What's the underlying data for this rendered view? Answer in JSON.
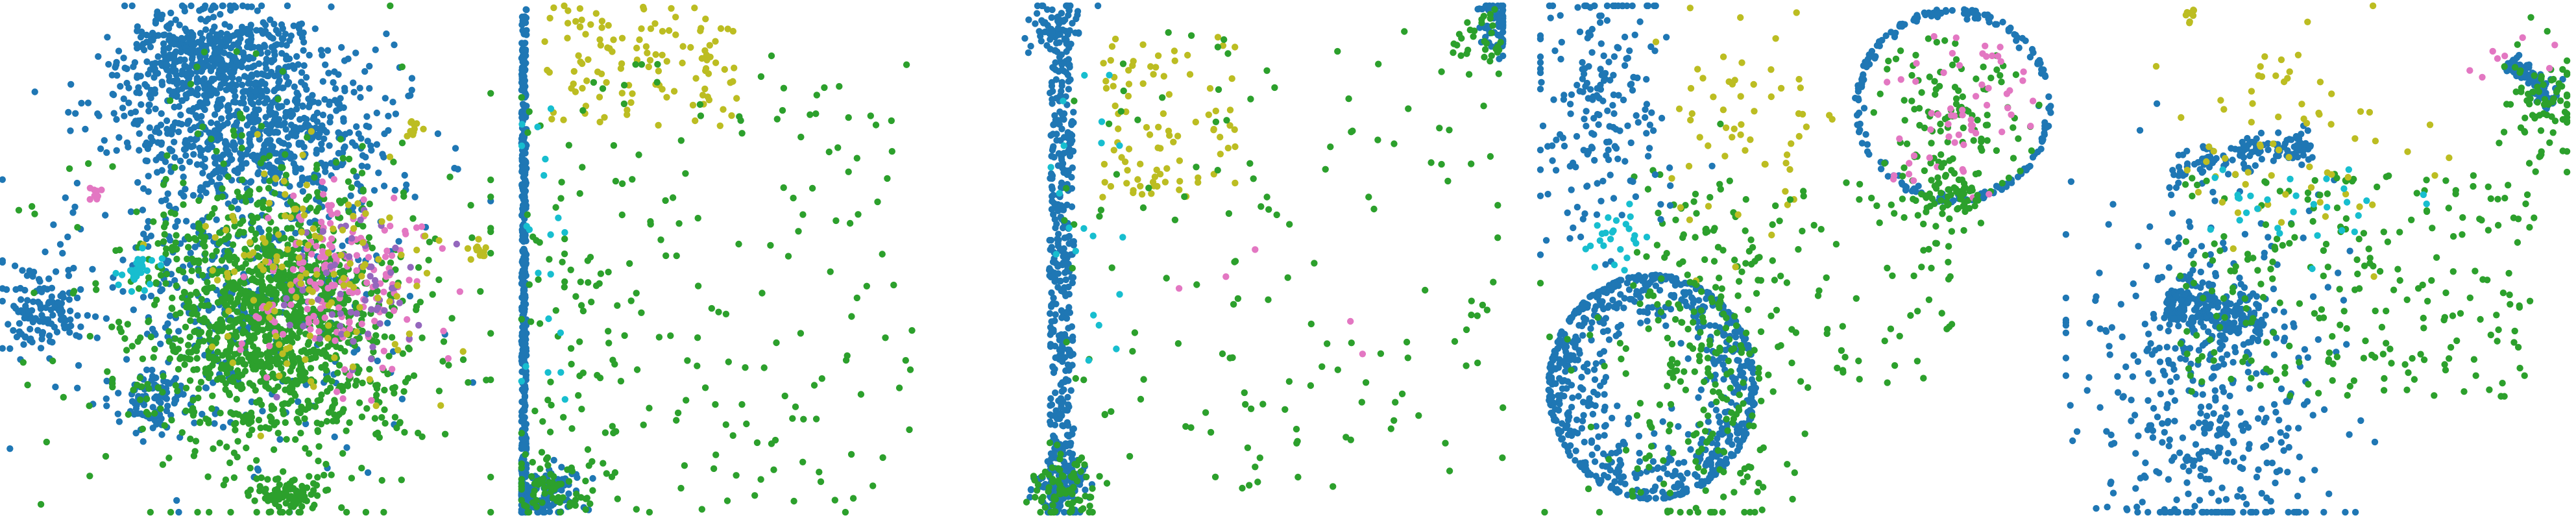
{
  "colors": {
    "blue": "#1f77b4",
    "green": "#2ca02c",
    "olive": "#bcbd22",
    "pink": "#e377c2",
    "purple": "#9467bd",
    "cyan": "#17becf"
  },
  "chart_data": [
    {
      "type": "scatter",
      "panel": 1,
      "axes_visible": false,
      "grid": false,
      "legend": "none",
      "xlim": [
        0,
        1
      ],
      "ylim": [
        0,
        1
      ],
      "clusters": [
        {
          "color": "blue",
          "n": 520,
          "cx": 0.43,
          "cy": 0.1,
          "sx": 0.09,
          "sy": 0.05,
          "shape": "gauss"
        },
        {
          "color": "blue",
          "n": 620,
          "cx": 0.52,
          "cy": 0.26,
          "sx": 0.13,
          "sy": 0.07,
          "shape": "gauss"
        },
        {
          "color": "blue",
          "n": 120,
          "cx": 0.08,
          "cy": 0.61,
          "sx": 0.04,
          "sy": 0.04,
          "shape": "gauss"
        },
        {
          "color": "blue",
          "n": 80,
          "cx": 0.31,
          "cy": 0.78,
          "sx": 0.03,
          "sy": 0.03,
          "shape": "gauss"
        },
        {
          "color": "blue",
          "n": 450,
          "cx": 0.48,
          "cy": 0.55,
          "sx": 0.17,
          "sy": 0.18,
          "shape": "gauss"
        },
        {
          "color": "green",
          "n": 1100,
          "cx": 0.55,
          "cy": 0.62,
          "sx": 0.12,
          "sy": 0.12,
          "shape": "gauss"
        },
        {
          "color": "green",
          "n": 80,
          "cx": 0.58,
          "cy": 0.96,
          "sx": 0.03,
          "sy": 0.02,
          "shape": "gauss"
        },
        {
          "color": "green",
          "n": 300,
          "cx": 0.55,
          "cy": 0.58,
          "sx": 0.22,
          "sy": 0.22,
          "shape": "gauss"
        },
        {
          "color": "pink",
          "n": 170,
          "cx": 0.7,
          "cy": 0.55,
          "sx": 0.09,
          "sy": 0.09,
          "shape": "gauss"
        },
        {
          "color": "purple",
          "n": 60,
          "cx": 0.7,
          "cy": 0.58,
          "sx": 0.08,
          "sy": 0.09,
          "shape": "gauss"
        },
        {
          "color": "olive",
          "n": 130,
          "cx": 0.63,
          "cy": 0.52,
          "sx": 0.11,
          "sy": 0.11,
          "shape": "gauss"
        },
        {
          "color": "olive",
          "n": 15,
          "cx": 0.97,
          "cy": 0.48,
          "sx": 0.01,
          "sy": 0.015,
          "shape": "gauss"
        },
        {
          "color": "olive",
          "n": 10,
          "cx": 0.84,
          "cy": 0.25,
          "sx": 0.01,
          "sy": 0.01,
          "shape": "gauss"
        },
        {
          "color": "cyan",
          "n": 30,
          "cx": 0.28,
          "cy": 0.52,
          "sx": 0.02,
          "sy": 0.02,
          "shape": "gauss"
        },
        {
          "color": "pink",
          "n": 8,
          "cx": 0.19,
          "cy": 0.37,
          "sx": 0.008,
          "sy": 0.008,
          "shape": "gauss"
        }
      ]
    },
    {
      "type": "scatter",
      "panel": 2,
      "axes_visible": false,
      "grid": false,
      "legend": "none",
      "xlim": [
        0,
        1
      ],
      "ylim": [
        0,
        1
      ],
      "clusters": [
        {
          "color": "blue",
          "n": 400,
          "cx": 0.01,
          "cy": 0.5,
          "sx": 0.005,
          "sy": 0.5,
          "shape": "uniform"
        },
        {
          "color": "blue",
          "n": 120,
          "cx": 0.05,
          "cy": 0.96,
          "sx": 0.04,
          "sy": 0.03,
          "shape": "gauss"
        },
        {
          "color": "green",
          "n": 70,
          "cx": 0.06,
          "cy": 0.95,
          "sx": 0.05,
          "sy": 0.03,
          "shape": "gauss"
        },
        {
          "color": "olive",
          "n": 120,
          "cx": 0.25,
          "cy": 0.12,
          "sx": 0.2,
          "sy": 0.12,
          "shape": "uniform"
        },
        {
          "color": "green",
          "n": 180,
          "cx": 0.4,
          "cy": 0.55,
          "sx": 0.4,
          "sy": 0.45,
          "shape": "uniform"
        },
        {
          "color": "green",
          "n": 40,
          "cx": 0.1,
          "cy": 0.7,
          "sx": 0.1,
          "sy": 0.25,
          "shape": "uniform"
        },
        {
          "color": "cyan",
          "n": 20,
          "cx": 0.05,
          "cy": 0.5,
          "sx": 0.05,
          "sy": 0.3,
          "shape": "uniform"
        }
      ]
    },
    {
      "type": "scatter",
      "panel": 3,
      "axes_visible": false,
      "grid": false,
      "legend": "none",
      "xlim": [
        0,
        1
      ],
      "ylim": [
        0,
        1
      ],
      "clusters": [
        {
          "color": "blue",
          "n": 380,
          "cx": 0.1,
          "cy": 0.5,
          "sx": 0.025,
          "sy": 0.45,
          "shape": "uniform"
        },
        {
          "color": "blue",
          "n": 120,
          "cx": 0.1,
          "cy": 0.95,
          "sx": 0.03,
          "sy": 0.035,
          "shape": "gauss"
        },
        {
          "color": "blue",
          "n": 60,
          "cx": 0.09,
          "cy": 0.04,
          "sx": 0.03,
          "sy": 0.03,
          "shape": "gauss"
        },
        {
          "color": "green",
          "n": 80,
          "cx": 0.1,
          "cy": 0.95,
          "sx": 0.03,
          "sy": 0.03,
          "shape": "gauss"
        },
        {
          "color": "olive",
          "n": 90,
          "cx": 0.32,
          "cy": 0.22,
          "sx": 0.14,
          "sy": 0.16,
          "shape": "uniform"
        },
        {
          "color": "green",
          "n": 150,
          "cx": 0.55,
          "cy": 0.5,
          "sx": 0.45,
          "sy": 0.45,
          "shape": "uniform"
        },
        {
          "color": "blue",
          "n": 60,
          "cx": 0.98,
          "cy": 0.04,
          "sx": 0.02,
          "sy": 0.03,
          "shape": "gauss"
        },
        {
          "color": "green",
          "n": 30,
          "cx": 0.95,
          "cy": 0.08,
          "sx": 0.03,
          "sy": 0.04,
          "shape": "gauss"
        },
        {
          "color": "cyan",
          "n": 20,
          "cx": 0.15,
          "cy": 0.4,
          "sx": 0.08,
          "sy": 0.3,
          "shape": "uniform"
        },
        {
          "color": "pink",
          "n": 5,
          "cx": 0.6,
          "cy": 0.4,
          "sx": 0.3,
          "sy": 0.3,
          "shape": "uniform"
        }
      ]
    },
    {
      "type": "scatter",
      "panel": 4,
      "axes_visible": false,
      "grid": false,
      "legend": "none",
      "xlim": [
        0,
        1
      ],
      "ylim": [
        0,
        1
      ],
      "clusters": [
        {
          "color": "blue",
          "n": 500,
          "cx": 0.22,
          "cy": 0.75,
          "sx": 0.2,
          "sy": 0.22,
          "shape": "ring",
          "thick": 0.25
        },
        {
          "color": "blue",
          "n": 250,
          "cx": 0.22,
          "cy": 0.75,
          "sx": 0.2,
          "sy": 0.22,
          "shape": "ring",
          "thick": 0.02
        },
        {
          "color": "green",
          "n": 250,
          "cx": 0.32,
          "cy": 0.72,
          "sx": 0.1,
          "sy": 0.18,
          "shape": "gauss"
        },
        {
          "color": "blue",
          "n": 200,
          "cx": 0.12,
          "cy": 0.2,
          "sx": 0.07,
          "sy": 0.15,
          "shape": "gauss"
        },
        {
          "color": "blue",
          "n": 200,
          "cx": 0.8,
          "cy": 0.2,
          "sx": 0.19,
          "sy": 0.19,
          "shape": "ring",
          "thick": 0.04
        },
        {
          "color": "green",
          "n": 120,
          "cx": 0.8,
          "cy": 0.22,
          "sx": 0.17,
          "sy": 0.17,
          "shape": "ring",
          "thick": 0.6
        },
        {
          "color": "pink",
          "n": 60,
          "cx": 0.8,
          "cy": 0.22,
          "sx": 0.17,
          "sy": 0.17,
          "shape": "ring",
          "thick": 0.6
        },
        {
          "color": "olive",
          "n": 60,
          "cx": 0.38,
          "cy": 0.25,
          "sx": 0.08,
          "sy": 0.1,
          "shape": "gauss"
        },
        {
          "color": "green",
          "n": 100,
          "cx": 0.55,
          "cy": 0.55,
          "sx": 0.25,
          "sy": 0.2,
          "shape": "uniform"
        },
        {
          "color": "cyan",
          "n": 25,
          "cx": 0.15,
          "cy": 0.45,
          "sx": 0.03,
          "sy": 0.03,
          "shape": "gauss"
        },
        {
          "color": "green",
          "n": 60,
          "cx": 0.8,
          "cy": 0.38,
          "sx": 0.03,
          "sy": 0.03,
          "shape": "gauss"
        }
      ]
    },
    {
      "type": "scatter",
      "panel": 5,
      "axes_visible": false,
      "grid": false,
      "legend": "none",
      "xlim": [
        0,
        1
      ],
      "ylim": [
        0,
        1
      ],
      "clusters": [
        {
          "color": "blue",
          "n": 450,
          "cx": 0.28,
          "cy": 0.75,
          "sx": 0.12,
          "sy": 0.18,
          "shape": "gauss"
        },
        {
          "color": "blue",
          "n": 200,
          "cx": 0.3,
          "cy": 0.6,
          "sx": 0.1,
          "sy": 0.025,
          "shape": "arc",
          "angle": 15
        },
        {
          "color": "blue",
          "n": 120,
          "cx": 0.35,
          "cy": 0.29,
          "sx": 0.14,
          "sy": 0.015,
          "shape": "arc",
          "angle": -12
        },
        {
          "color": "blue",
          "n": 100,
          "cx": 0.93,
          "cy": 0.15,
          "sx": 0.06,
          "sy": 0.01,
          "shape": "arc",
          "angle": 45
        },
        {
          "color": "green",
          "n": 250,
          "cx": 0.58,
          "cy": 0.55,
          "sx": 0.35,
          "sy": 0.22,
          "shape": "uniform"
        },
        {
          "color": "green",
          "n": 80,
          "cx": 0.95,
          "cy": 0.2,
          "sx": 0.04,
          "sy": 0.06,
          "shape": "gauss"
        },
        {
          "color": "olive",
          "n": 70,
          "cx": 0.45,
          "cy": 0.28,
          "sx": 0.12,
          "sy": 0.1,
          "shape": "gauss"
        },
        {
          "color": "olive",
          "n": 10,
          "cx": 0.25,
          "cy": 0.02,
          "sx": 0.01,
          "sy": 0.01,
          "shape": "gauss"
        },
        {
          "color": "cyan",
          "n": 30,
          "cx": 0.45,
          "cy": 0.4,
          "sx": 0.12,
          "sy": 0.05,
          "shape": "gauss"
        },
        {
          "color": "pink",
          "n": 8,
          "cx": 0.9,
          "cy": 0.1,
          "sx": 0.05,
          "sy": 0.05,
          "shape": "gauss"
        }
      ]
    }
  ]
}
